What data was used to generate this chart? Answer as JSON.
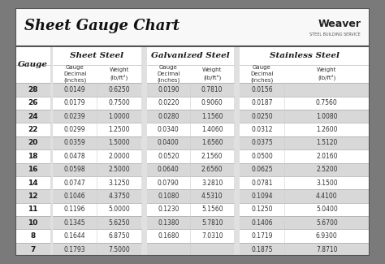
{
  "title": "Sheet Gauge Chart",
  "bg_outer": "#7a7a7a",
  "bg_white": "#ffffff",
  "bg_light_gray": "#e0e0e0",
  "bg_row_alt": "#d8d8d8",
  "bg_row_white": "#f5f5f5",
  "sep_color": "#888888",
  "text_dark": "#1a1a1a",
  "text_data": "#333333",
  "gauges": [
    28,
    26,
    24,
    22,
    20,
    18,
    16,
    14,
    12,
    11,
    10,
    8,
    7
  ],
  "sheet_steel": {
    "decimal": [
      "0.0149",
      "0.0179",
      "0.0239",
      "0.0299",
      "0.0359",
      "0.0478",
      "0.0598",
      "0.0747",
      "0.1046",
      "0.1196",
      "0.1345",
      "0.1644",
      "0.1793"
    ],
    "weight": [
      "0.6250",
      "0.7500",
      "1.0000",
      "1.2500",
      "1.5000",
      "2.0000",
      "2.5000",
      "3.1250",
      "4.3750",
      "5.0000",
      "5.6250",
      "6.8750",
      "7.5000"
    ]
  },
  "galvanized_steel": {
    "decimal": [
      "0.0190",
      "0.0220",
      "0.0280",
      "0.0340",
      "0.0400",
      "0.0520",
      "0.0640",
      "0.0790",
      "0.1080",
      "0.1230",
      "0.1380",
      "0.1680",
      ""
    ],
    "weight": [
      "0.7810",
      "0.9060",
      "1.1560",
      "1.4060",
      "1.6560",
      "2.1560",
      "2.6560",
      "3.2810",
      "4.5310",
      "5.1560",
      "5.7810",
      "7.0310",
      ""
    ]
  },
  "stainless_steel": {
    "decimal": [
      "0.0156",
      "0.0187",
      "0.0250",
      "0.0312",
      "0.0375",
      "0.0500",
      "0.0625",
      "0.0781",
      "0.1094",
      "0.1250",
      "0.1406",
      "0.1719",
      "0.1875"
    ],
    "weight": [
      "",
      "0.7560",
      "1.0080",
      "1.2600",
      "1.5120",
      "2.0160",
      "2.5200",
      "3.1500",
      "4.4100",
      "5.0400",
      "5.6700",
      "6.9300",
      "7.8710"
    ]
  }
}
